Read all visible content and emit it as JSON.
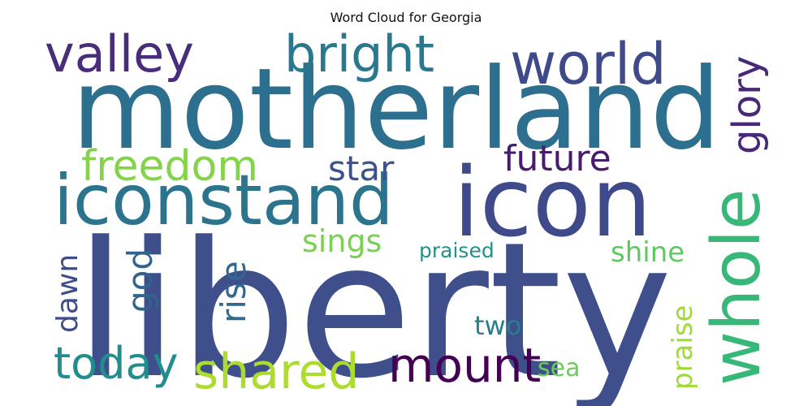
{
  "chart_data": {
    "type": "wordcloud",
    "title": "Word Cloud for Georgia",
    "words": [
      {
        "text": "liberty",
        "weight": 1.0,
        "color": "#3f4f8c",
        "orientation": "horizontal"
      },
      {
        "text": "motherland",
        "weight": 0.86,
        "color": "#2d6f8e",
        "orientation": "horizontal"
      },
      {
        "text": "icon",
        "weight": 0.72,
        "color": "#3e4a89",
        "orientation": "horizontal"
      },
      {
        "text": "iconstand",
        "weight": 0.55,
        "color": "#2c738e",
        "orientation": "horizontal"
      },
      {
        "text": "whole",
        "weight": 0.52,
        "color": "#37b878",
        "orientation": "vertical"
      },
      {
        "text": "world",
        "weight": 0.45,
        "color": "#3f4a8a",
        "orientation": "horizontal"
      },
      {
        "text": "valley",
        "weight": 0.4,
        "color": "#472d7b",
        "orientation": "horizontal"
      },
      {
        "text": "bright",
        "weight": 0.4,
        "color": "#2a788e",
        "orientation": "horizontal"
      },
      {
        "text": "shared",
        "weight": 0.4,
        "color": "#addc30",
        "orientation": "horizontal"
      },
      {
        "text": "mount",
        "weight": 0.37,
        "color": "#440154",
        "orientation": "horizontal"
      },
      {
        "text": "today",
        "weight": 0.34,
        "color": "#228d8d",
        "orientation": "horizontal"
      },
      {
        "text": "freedom",
        "weight": 0.34,
        "color": "#84d44b",
        "orientation": "horizontal"
      },
      {
        "text": "glory",
        "weight": 0.31,
        "color": "#482878",
        "orientation": "vertical"
      },
      {
        "text": "future",
        "weight": 0.28,
        "color": "#481b6d",
        "orientation": "horizontal"
      },
      {
        "text": "star",
        "weight": 0.27,
        "color": "#3b528b",
        "orientation": "horizontal"
      },
      {
        "text": "god",
        "weight": 0.27,
        "color": "#33638d",
        "orientation": "vertical"
      },
      {
        "text": "rise",
        "weight": 0.27,
        "color": "#31688e",
        "orientation": "vertical"
      },
      {
        "text": "sings",
        "weight": 0.24,
        "color": "#7ad151",
        "orientation": "horizontal"
      },
      {
        "text": "dawn",
        "weight": 0.24,
        "color": "#3e4c8a",
        "orientation": "vertical"
      },
      {
        "text": "shine",
        "weight": 0.21,
        "color": "#5ec962",
        "orientation": "horizontal"
      },
      {
        "text": "praise",
        "weight": 0.21,
        "color": "#a0da39",
        "orientation": "vertical"
      },
      {
        "text": "two",
        "weight": 0.2,
        "color": "#287d8e",
        "orientation": "horizontal"
      },
      {
        "text": "sea",
        "weight": 0.18,
        "color": "#6ccd5a",
        "orientation": "horizontal"
      },
      {
        "text": "praised",
        "weight": 0.16,
        "color": "#21918c",
        "orientation": "horizontal"
      }
    ]
  }
}
